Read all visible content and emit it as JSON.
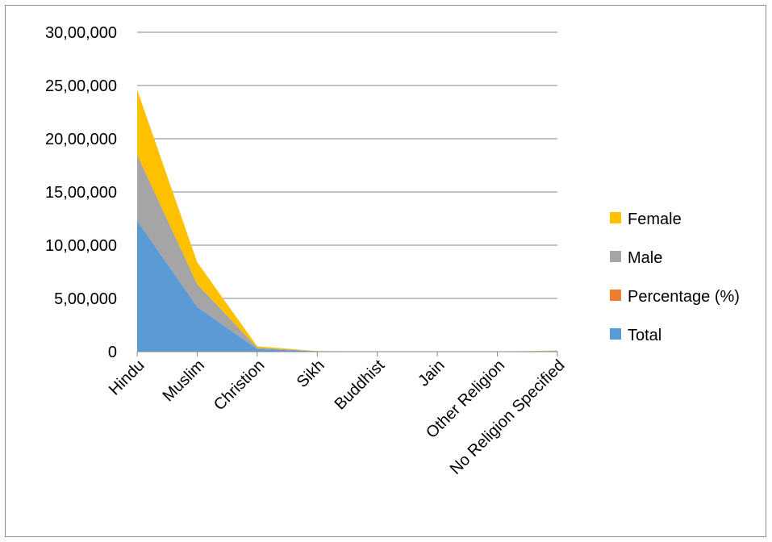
{
  "chart_data": {
    "type": "area",
    "stacked": true,
    "categories": [
      "Hindu",
      "Muslim",
      "Christion",
      "Sikh",
      "Buddhist",
      "Jain",
      "Other Religion",
      "No Religion Specified"
    ],
    "series": [
      {
        "name": "Total",
        "color": "#5b9bd5",
        "values": [
          1230000,
          420000,
          25000,
          3000,
          1000,
          500,
          500,
          5000
        ]
      },
      {
        "name": "Percentage (%)",
        "color": "#ed7d31",
        "values": [
          50,
          17,
          1,
          0.1,
          0.05,
          0.02,
          0.02,
          0.2
        ]
      },
      {
        "name": "Male",
        "color": "#a5a5a5",
        "values": [
          620000,
          215000,
          13000,
          1500,
          500,
          250,
          250,
          2500
        ]
      },
      {
        "name": "Female",
        "color": "#ffc000",
        "values": [
          610000,
          205000,
          12000,
          1500,
          500,
          250,
          250,
          2500
        ]
      }
    ],
    "y_ticks": [
      "0",
      "5,00,000",
      "10,00,000",
      "15,00,000",
      "20,00,000",
      "25,00,000",
      "30,00,000"
    ],
    "ylim": [
      0,
      3000000
    ],
    "grid": true,
    "legend_position": "right",
    "legend_order": [
      "Female",
      "Male",
      "Percentage (%)",
      "Total"
    ]
  }
}
